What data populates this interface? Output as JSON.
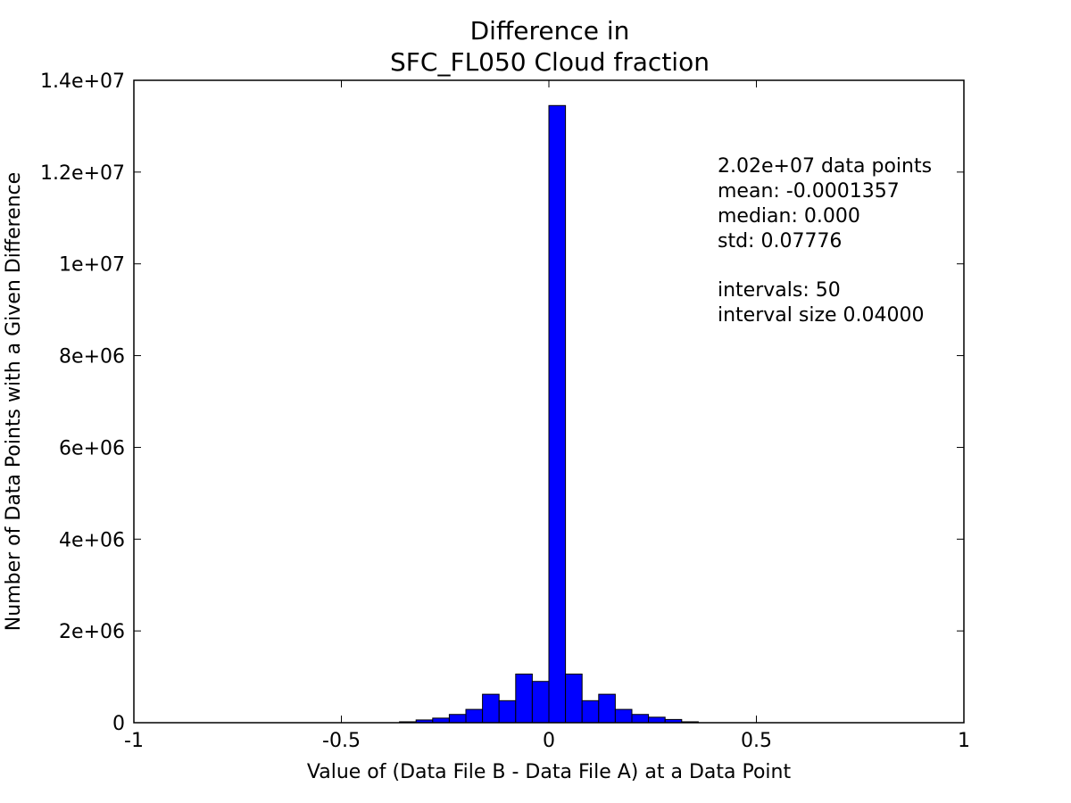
{
  "chart_data": {
    "type": "bar",
    "title": [
      "Difference in",
      "SFC_FL050 Cloud fraction"
    ],
    "xlabel": "Value of (Data File B - Data File A) at a Data Point",
    "ylabel": "Number of Data Points with a Given Difference",
    "xlim": [
      -1,
      1
    ],
    "ylim": [
      0,
      14000000
    ],
    "xticks": [
      {
        "value": -1,
        "label": "-1"
      },
      {
        "value": -0.5,
        "label": "-0.5"
      },
      {
        "value": 0,
        "label": "0"
      },
      {
        "value": 0.5,
        "label": "0.5"
      },
      {
        "value": 1,
        "label": "1"
      }
    ],
    "yticks": [
      {
        "value": 0,
        "label": "0"
      },
      {
        "value": 2000000,
        "label": "2e+06"
      },
      {
        "value": 4000000,
        "label": "4e+06"
      },
      {
        "value": 6000000,
        "label": "6e+06"
      },
      {
        "value": 8000000,
        "label": "8e+06"
      },
      {
        "value": 10000000,
        "label": "1e+07"
      },
      {
        "value": 12000000,
        "label": "1.2e+07"
      },
      {
        "value": 14000000,
        "label": "1.4e+07"
      }
    ],
    "bin_width": 0.04,
    "bins": [
      {
        "x0": -0.36,
        "count": 20000
      },
      {
        "x0": -0.32,
        "count": 60000
      },
      {
        "x0": -0.28,
        "count": 100000
      },
      {
        "x0": -0.24,
        "count": 180000
      },
      {
        "x0": -0.2,
        "count": 290000
      },
      {
        "x0": -0.16,
        "count": 620000
      },
      {
        "x0": -0.12,
        "count": 480000
      },
      {
        "x0": -0.08,
        "count": 1060000
      },
      {
        "x0": -0.04,
        "count": 900000
      },
      {
        "x0": 0.0,
        "count": 13450000
      },
      {
        "x0": 0.04,
        "count": 1060000
      },
      {
        "x0": 0.08,
        "count": 480000
      },
      {
        "x0": 0.12,
        "count": 620000
      },
      {
        "x0": 0.16,
        "count": 290000
      },
      {
        "x0": 0.2,
        "count": 180000
      },
      {
        "x0": 0.24,
        "count": 120000
      },
      {
        "x0": 0.28,
        "count": 70000
      },
      {
        "x0": 0.32,
        "count": 20000
      }
    ],
    "bar_color": "#0000ff",
    "grid": false,
    "annotations": [
      "2.02e+07 data points",
      "mean: -0.0001357",
      "median: 0.000",
      "std: 0.07776",
      "",
      "intervals: 50",
      "interval size 0.04000"
    ]
  }
}
